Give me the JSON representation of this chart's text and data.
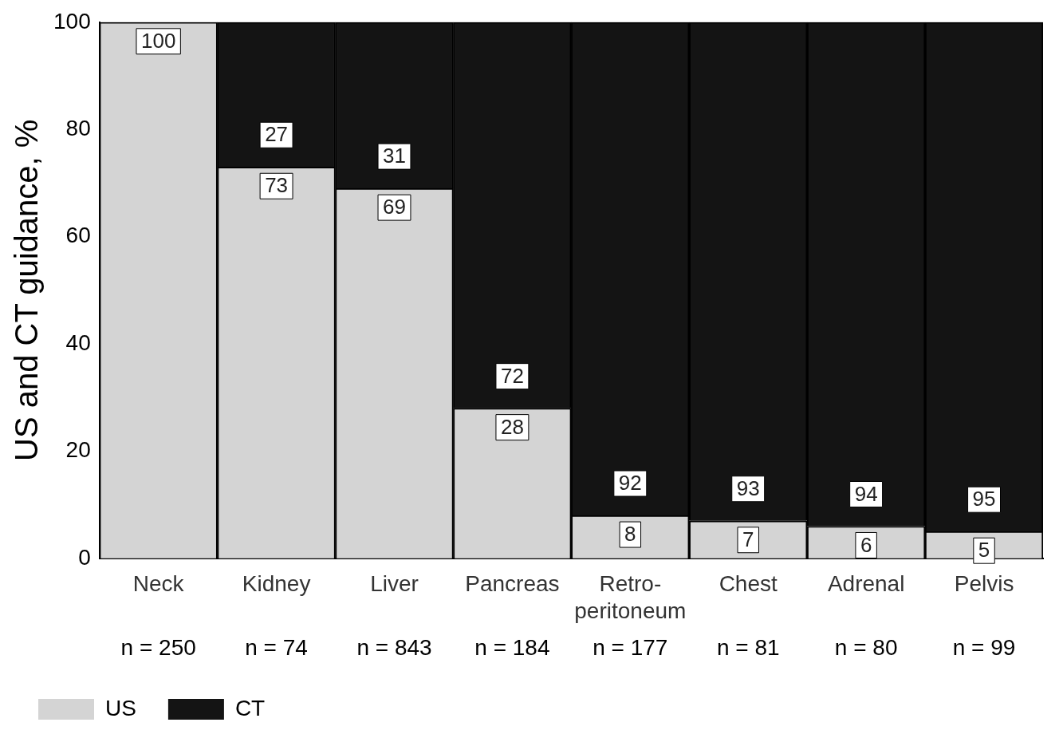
{
  "chart_data": {
    "type": "bar",
    "stacked": true,
    "ylabel": "US and CT guidance, %",
    "categories": [
      "Neck",
      "Kidney",
      "Liver",
      "Pancreas",
      "Retro-peritoneum",
      "Chest",
      "Adrenal",
      "Pelvis"
    ],
    "series": [
      {
        "name": "US",
        "color": "#d4d4d4",
        "values": [
          100,
          73,
          69,
          28,
          8,
          7,
          6,
          5
        ],
        "value_labels": [
          "100",
          "73",
          "69",
          "28",
          "8",
          "7",
          "6",
          "5"
        ]
      },
      {
        "name": "CT",
        "color": "#141414",
        "values": [
          0,
          27,
          31,
          72,
          92,
          93,
          94,
          95
        ],
        "value_labels": [
          null,
          "27",
          "31",
          "72",
          "92",
          "93",
          "94",
          "95"
        ]
      }
    ],
    "ylim": [
      0,
      100
    ],
    "yticks": [
      0,
      20,
      40,
      60,
      80,
      100
    ],
    "grid": false,
    "legend": "bottom left",
    "annotations": [
      "n = 250",
      "n = 74",
      "n = 843",
      "n = 184",
      "n = 177",
      "n = 81",
      "n = 80",
      "n = 99"
    ]
  }
}
